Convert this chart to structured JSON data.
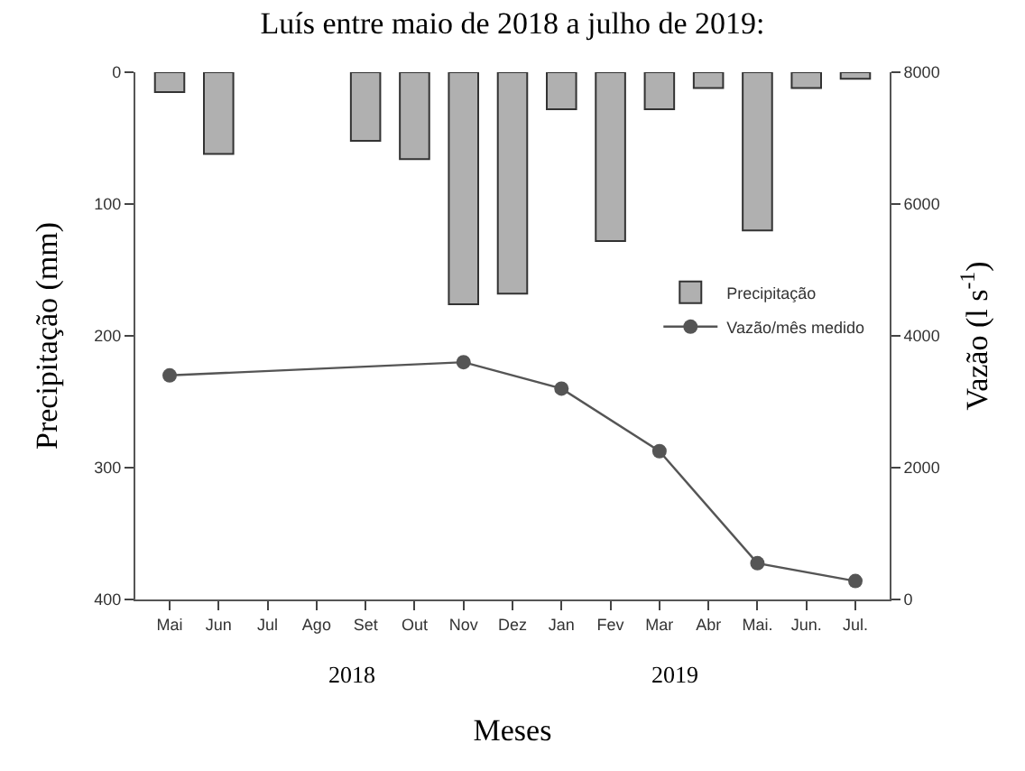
{
  "chart_data": {
    "type": "bar",
    "title": "Luís entre maio de 2018 a julho de 2019:",
    "categories": [
      "Mai",
      "Jun",
      "Jul",
      "Ago",
      "Set",
      "Out",
      "Nov",
      "Dez",
      "Jan",
      "Fev",
      "Mar",
      "Abr",
      "Mai.",
      "Jun.",
      "Jul."
    ],
    "series": [
      {
        "name": "Precipitação",
        "color": "#b0b0b0",
        "values": [
          15,
          62,
          null,
          null,
          52,
          66,
          176,
          168,
          28,
          128,
          28,
          12,
          120,
          12,
          5
        ]
      },
      {
        "name": "Vazão/mês medido",
        "type": "line",
        "axis": "y2",
        "color": "#555555",
        "marker": "circle",
        "values": [
          3400,
          null,
          null,
          null,
          null,
          null,
          3600,
          null,
          3200,
          null,
          2250,
          null,
          550,
          null,
          280
        ]
      }
    ],
    "ylim": [
      400,
      0
    ],
    "yticks": [
      0,
      100,
      200,
      300,
      400
    ],
    "y2lim": [
      0,
      8000
    ],
    "y2ticks": [
      0,
      2000,
      4000,
      6000,
      8000
    ],
    "xlabel": "Meses",
    "ylabel": "Precipitação (mm)",
    "y2label": "Vazão (l s$^{-1}$)",
    "annotations": [
      "2018",
      "2019"
    ],
    "legend": "right"
  }
}
